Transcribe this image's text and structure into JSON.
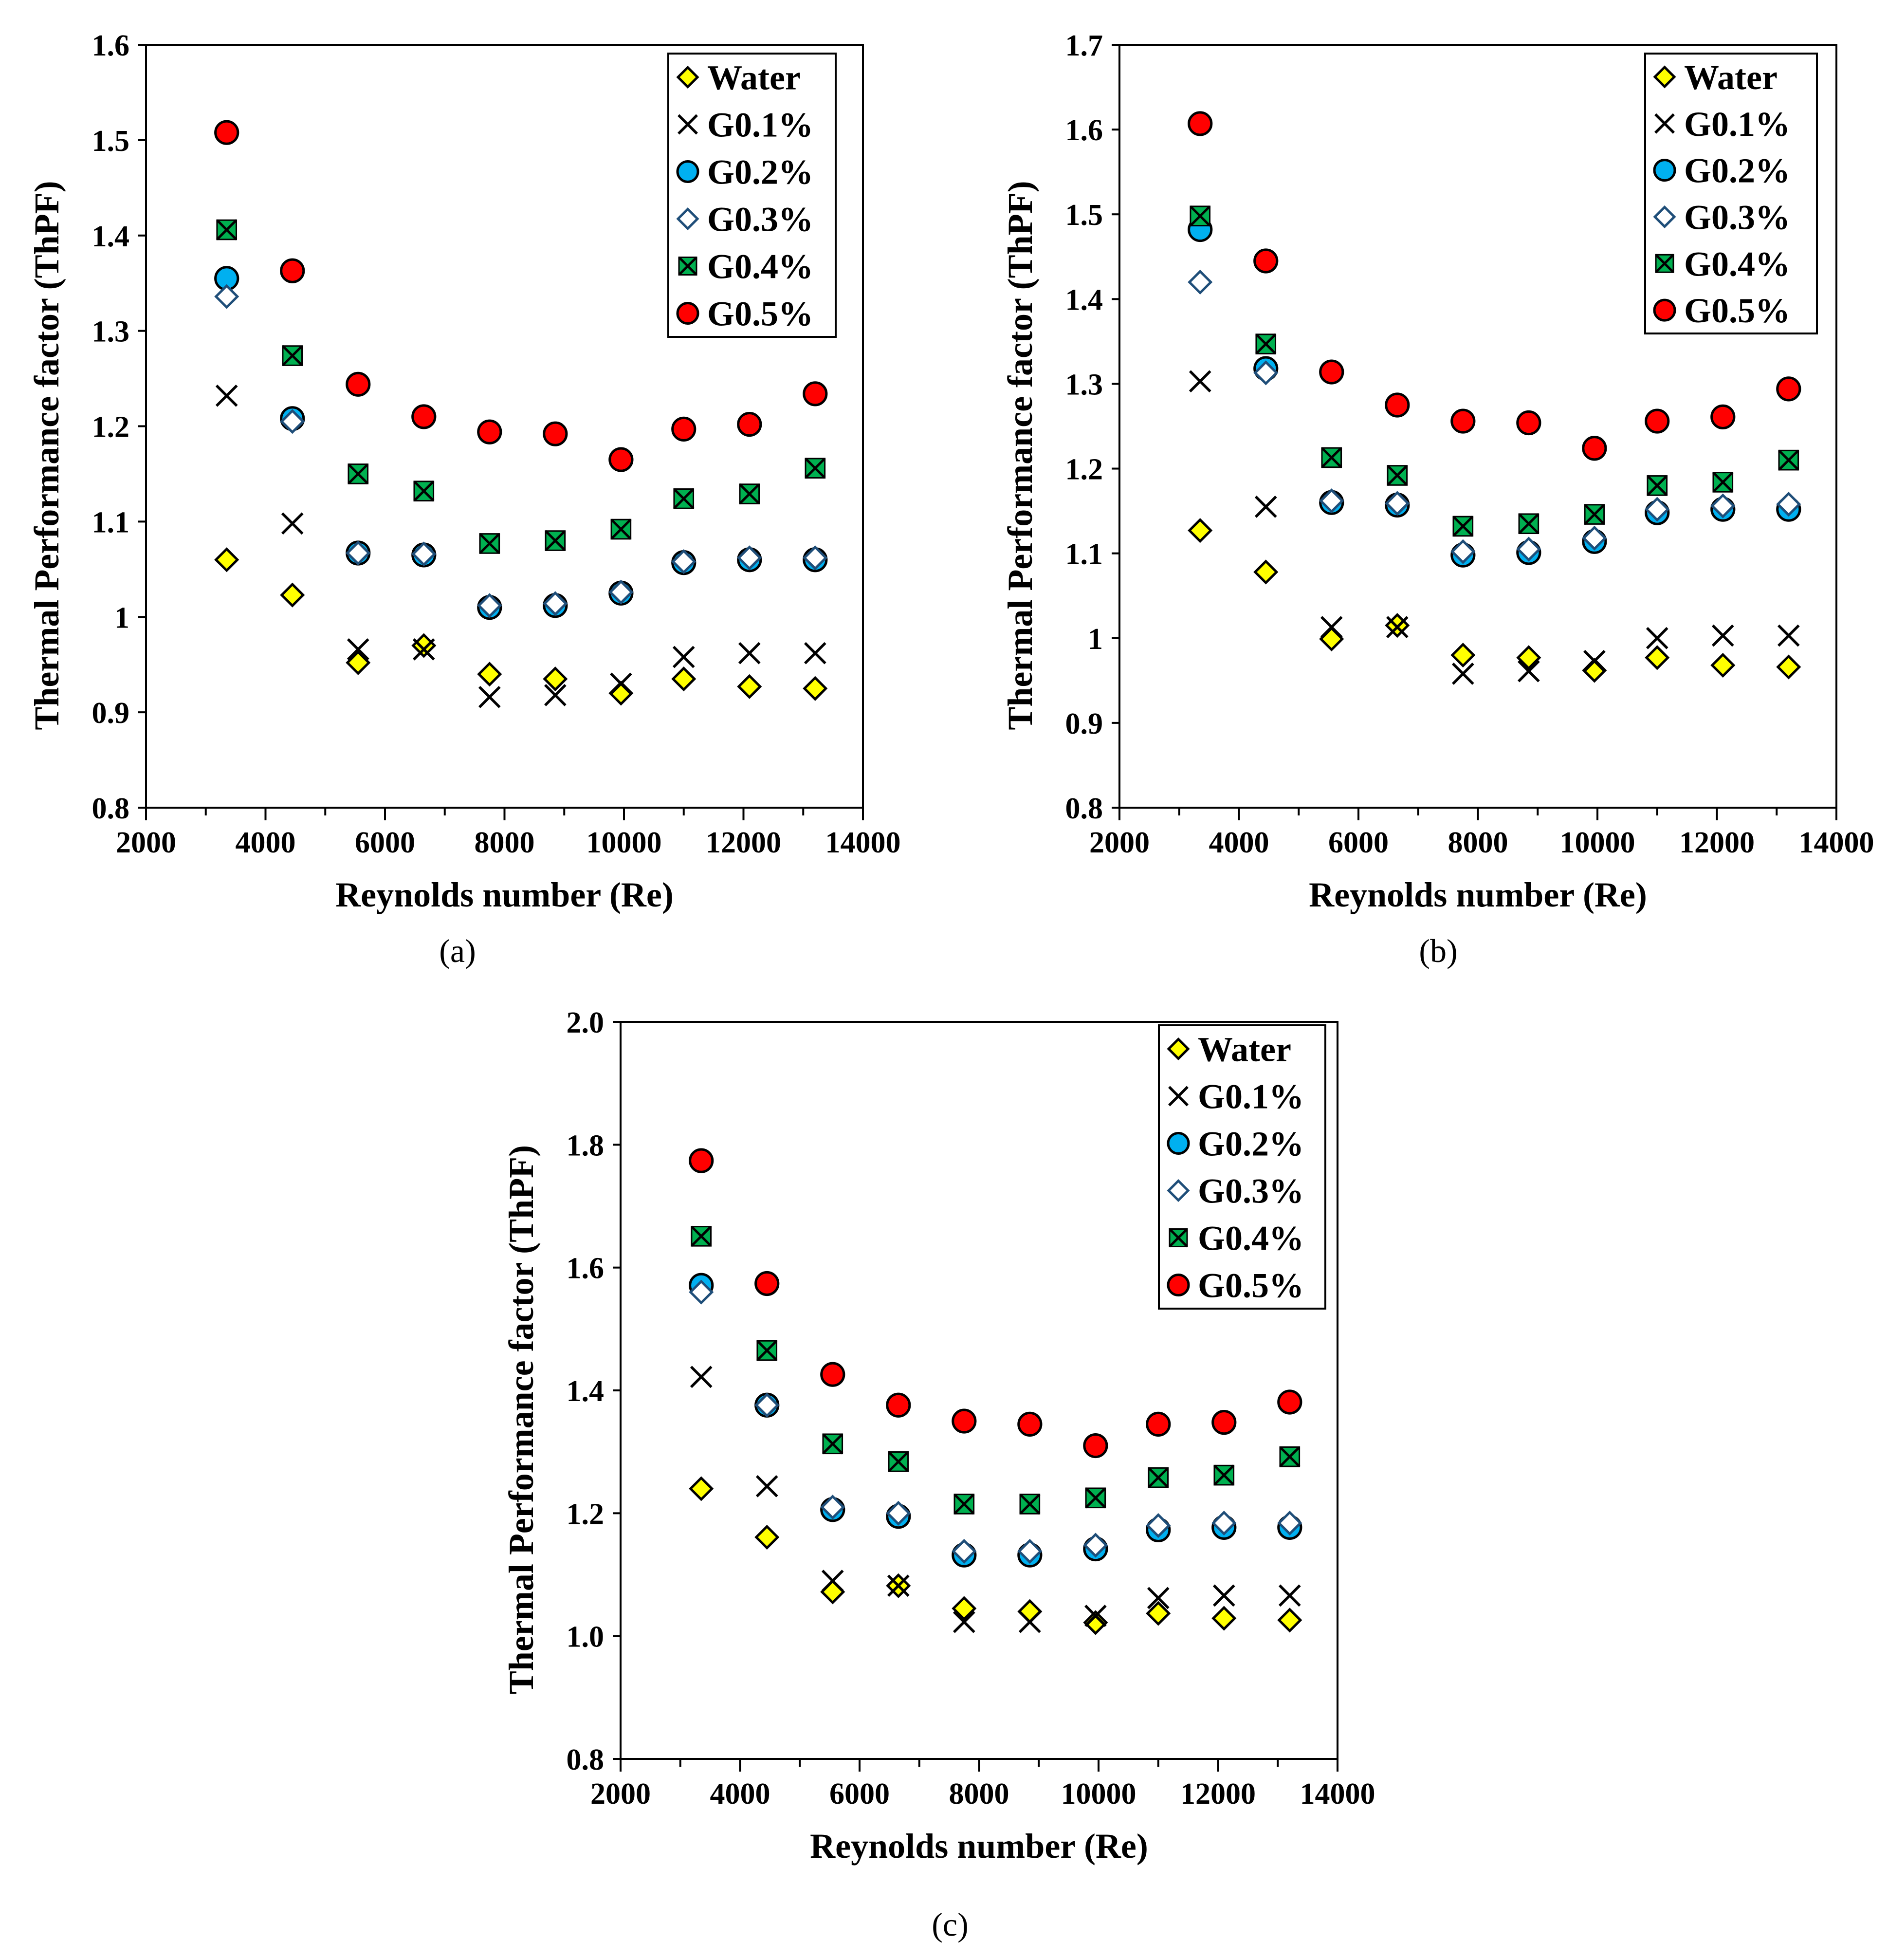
{
  "figure": {
    "colors": {
      "water": "#ffff00",
      "g01": "#000000",
      "g02": "#00b0f0",
      "g03": "#ffffff",
      "g03_edge": "#1f4e79",
      "g04": "#00b050",
      "g05": "#ff0000"
    },
    "marker_types": {
      "Water": "diamond",
      "G0.1%": "cross",
      "G0.2%": "circle",
      "G0.3%": "open-diamond",
      "G0.4%": "boxcross",
      "G0.5%": "circle-red"
    }
  },
  "chart_data": [
    {
      "type": "scatter",
      "panel": "(a)",
      "xlabel": "Reynolds number (Re)",
      "ylabel": "Thermal Performance factor (ThPF)",
      "xlim": [
        2000,
        14000
      ],
      "ylim": [
        0.8,
        1.6
      ],
      "xticks": [
        2000,
        4000,
        6000,
        8000,
        10000,
        12000,
        14000
      ],
      "xtick_labels": [
        "2000",
        "4000",
        "6000",
        "8000",
        "10000",
        "12000",
        "14000"
      ],
      "yticks": [
        0.8,
        0.9,
        1.0,
        1.1,
        1.2,
        1.3,
        1.4,
        1.5,
        1.6
      ],
      "ytick_labels": [
        "0.8",
        "0.9",
        "1",
        "1.1",
        "1.2",
        "1.3",
        "1.4",
        "1.5",
        "1.6"
      ],
      "x": [
        3350,
        4450,
        5550,
        6650,
        7750,
        8850,
        9950,
        11000,
        12100,
        13200
      ],
      "series": [
        {
          "name": "Water",
          "marker": "diamond",
          "values": [
            1.06,
            1.023,
            0.952,
            0.97,
            0.94,
            0.935,
            0.92,
            0.935,
            0.927,
            0.925
          ]
        },
        {
          "name": "G0.1%",
          "marker": "cross",
          "values": [
            1.232,
            1.098,
            0.966,
            0.966,
            0.916,
            0.918,
            0.93,
            0.958,
            0.962,
            0.962
          ]
        },
        {
          "name": "G0.2%",
          "marker": "circle",
          "values": [
            1.355,
            1.208,
            1.067,
            1.065,
            1.01,
            1.012,
            1.025,
            1.057,
            1.06,
            1.06
          ]
        },
        {
          "name": "G0.3%",
          "marker": "open-diamond",
          "values": [
            1.336,
            1.205,
            1.067,
            1.066,
            1.012,
            1.014,
            1.026,
            1.058,
            1.062,
            1.062
          ]
        },
        {
          "name": "G0.4%",
          "marker": "boxcross",
          "values": [
            1.406,
            1.274,
            1.15,
            1.132,
            1.077,
            1.08,
            1.092,
            1.124,
            1.129,
            1.156
          ]
        },
        {
          "name": "G0.5%",
          "marker": "circle-red",
          "values": [
            1.508,
            1.363,
            1.244,
            1.21,
            1.194,
            1.192,
            1.165,
            1.197,
            1.202,
            1.234
          ]
        }
      ]
    },
    {
      "type": "scatter",
      "panel": "(b)",
      "xlabel": "Reynolds number (Re)",
      "ylabel": "Thermal Performance factor (ThPF)",
      "xlim": [
        2000,
        14000
      ],
      "ylim": [
        0.8,
        1.7
      ],
      "xticks": [
        2000,
        4000,
        6000,
        8000,
        10000,
        12000,
        14000
      ],
      "xtick_labels": [
        "2000",
        "4000",
        "6000",
        "8000",
        "10000",
        "12000",
        "14000"
      ],
      "yticks": [
        0.8,
        0.9,
        1.0,
        1.1,
        1.2,
        1.3,
        1.4,
        1.5,
        1.6,
        1.7
      ],
      "ytick_labels": [
        "0.8",
        "0.9",
        "1",
        "1.1",
        "1.2",
        "1.3",
        "1.4",
        "1.5",
        "1.6",
        "1.7"
      ],
      "x": [
        3350,
        4450,
        5550,
        6650,
        7750,
        8850,
        9950,
        11000,
        12100,
        13200
      ],
      "series": [
        {
          "name": "Water",
          "marker": "diamond",
          "values": [
            1.127,
            1.078,
            0.999,
            1.015,
            0.98,
            0.977,
            0.962,
            0.977,
            0.968,
            0.966
          ]
        },
        {
          "name": "G0.1%",
          "marker": "cross",
          "values": [
            1.303,
            1.155,
            1.013,
            1.013,
            0.958,
            0.961,
            0.973,
            1.0,
            1.003,
            1.003
          ]
        },
        {
          "name": "G0.2%",
          "marker": "circle",
          "values": [
            1.482,
            1.318,
            1.16,
            1.157,
            1.098,
            1.101,
            1.114,
            1.148,
            1.152,
            1.152
          ]
        },
        {
          "name": "G0.3%",
          "marker": "open-diamond",
          "values": [
            1.42,
            1.313,
            1.162,
            1.159,
            1.102,
            1.105,
            1.118,
            1.152,
            1.156,
            1.158
          ]
        },
        {
          "name": "G0.4%",
          "marker": "boxcross",
          "values": [
            1.498,
            1.347,
            1.213,
            1.192,
            1.132,
            1.135,
            1.146,
            1.18,
            1.184,
            1.21
          ]
        },
        {
          "name": "G0.5%",
          "marker": "circle-red",
          "values": [
            1.607,
            1.445,
            1.314,
            1.275,
            1.256,
            1.254,
            1.224,
            1.256,
            1.261,
            1.294
          ]
        }
      ]
    },
    {
      "type": "scatter",
      "panel": "(c)",
      "xlabel": "Reynolds number (Re)",
      "ylabel": "Thermal Performance factor (ThPF)",
      "xlim": [
        2000,
        14000
      ],
      "ylim": [
        0.8,
        2.0
      ],
      "xticks": [
        2000,
        4000,
        6000,
        8000,
        10000,
        12000,
        14000
      ],
      "xtick_labels": [
        "2000",
        "4000",
        "6000",
        "8000",
        "10000",
        "12000",
        "14000"
      ],
      "yticks": [
        0.8,
        1.0,
        1.2,
        1.4,
        1.6,
        1.8,
        2.0
      ],
      "ytick_labels": [
        "0.8",
        "1.0",
        "1.2",
        "1.4",
        "1.6",
        "1.8",
        "2.0"
      ],
      "x": [
        3350,
        4450,
        5550,
        6650,
        7750,
        8850,
        9950,
        11000,
        12100,
        13200
      ],
      "series": [
        {
          "name": "Water",
          "marker": "diamond",
          "values": [
            1.24,
            1.161,
            1.072,
            1.082,
            1.045,
            1.04,
            1.022,
            1.037,
            1.029,
            1.026
          ]
        },
        {
          "name": "G0.1%",
          "marker": "cross",
          "values": [
            1.422,
            1.244,
            1.09,
            1.082,
            1.023,
            1.023,
            1.033,
            1.062,
            1.066,
            1.066
          ]
        },
        {
          "name": "G0.2%",
          "marker": "circle",
          "values": [
            1.571,
            1.376,
            1.206,
            1.195,
            1.132,
            1.132,
            1.142,
            1.173,
            1.177,
            1.177
          ]
        },
        {
          "name": "G0.3%",
          "marker": "open-diamond",
          "values": [
            1.56,
            1.376,
            1.21,
            1.2,
            1.138,
            1.138,
            1.148,
            1.18,
            1.184,
            1.184
          ]
        },
        {
          "name": "G0.4%",
          "marker": "boxcross",
          "values": [
            1.651,
            1.465,
            1.313,
            1.284,
            1.215,
            1.215,
            1.225,
            1.258,
            1.262,
            1.292
          ]
        },
        {
          "name": "G0.5%",
          "marker": "circle-red",
          "values": [
            1.774,
            1.574,
            1.426,
            1.376,
            1.35,
            1.345,
            1.31,
            1.345,
            1.348,
            1.381
          ]
        }
      ]
    }
  ]
}
